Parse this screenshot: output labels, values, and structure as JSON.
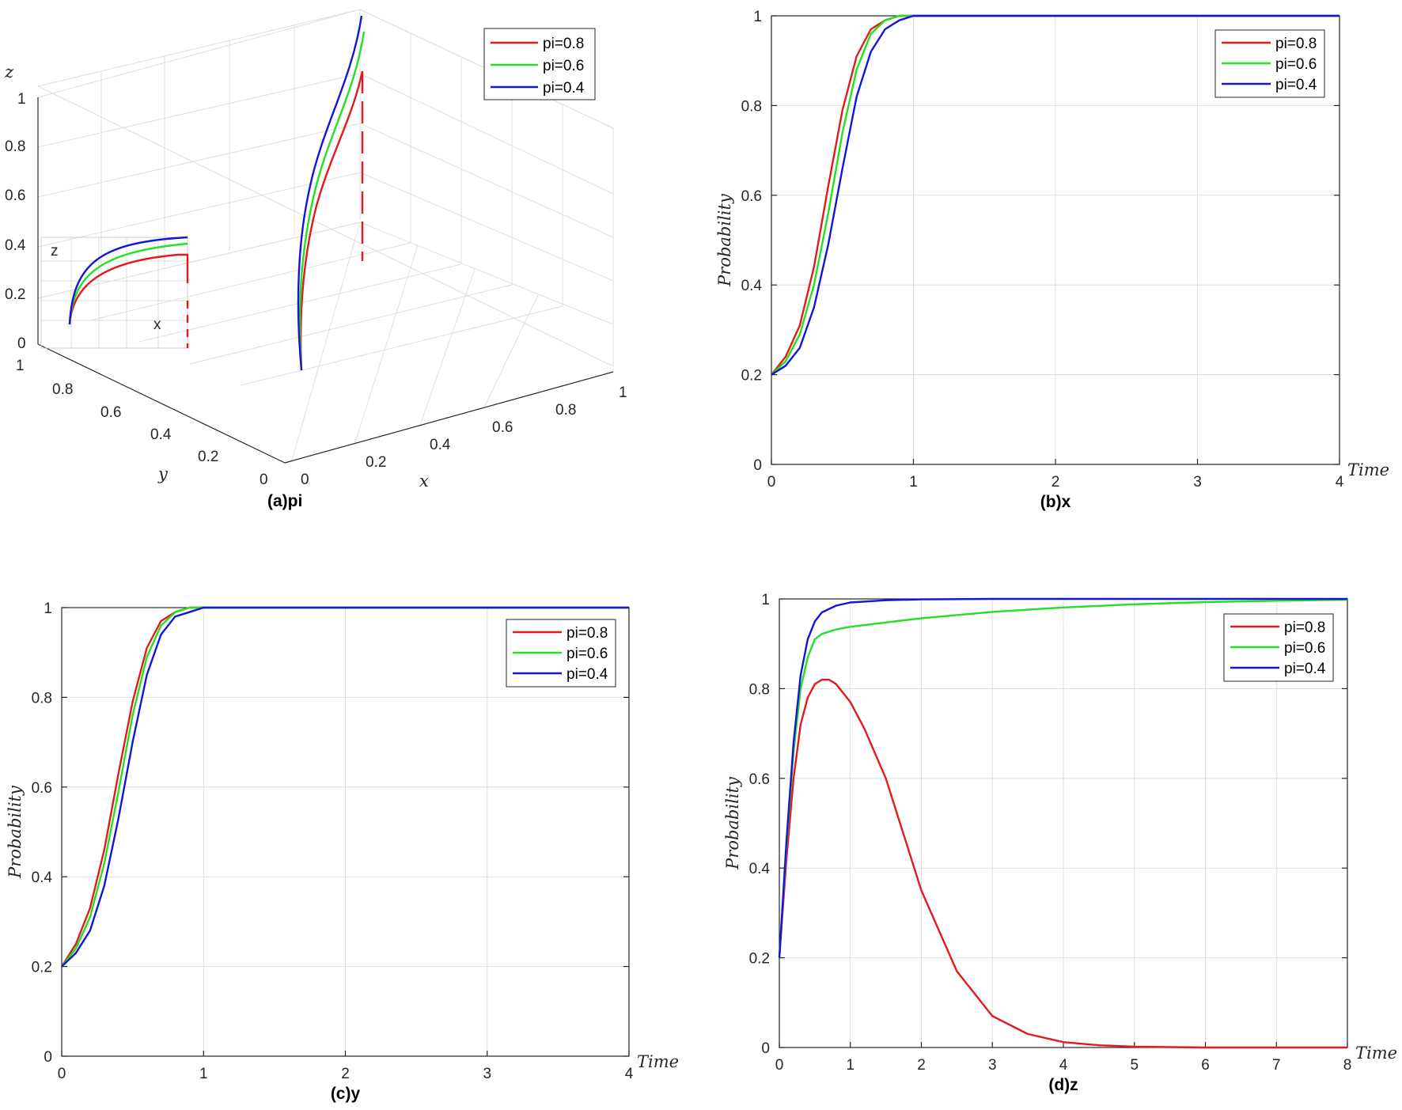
{
  "chart_data": [
    {
      "id": "a",
      "type": "line3d",
      "caption": "(a)pi",
      "xlabel": "x",
      "ylabel": "y",
      "zlabel": "z",
      "xlim": [
        0,
        1
      ],
      "ylim": [
        0,
        1
      ],
      "zlim": [
        0,
        1
      ],
      "xticks": [
        "0",
        "0.2",
        "0.4",
        "0.6",
        "0.8",
        "1"
      ],
      "yticks": [
        "0",
        "0.2",
        "0.4",
        "0.6",
        "0.8",
        "1"
      ],
      "zticks": [
        "0",
        "0.2",
        "0.4",
        "0.6",
        "0.8",
        "1"
      ],
      "inset": {
        "xlabel": "x",
        "zlabel": "z"
      },
      "legend": {
        "location": "top-right",
        "entries": [
          "pi=0.8",
          "pi=0.6",
          "pi=0.4"
        ]
      },
      "series": [
        {
          "name": "pi=0.8",
          "color": "#e31a1c"
        },
        {
          "name": "pi=0.6",
          "color": "#22e022"
        },
        {
          "name": "pi=0.4",
          "color": "#1515d8"
        }
      ]
    },
    {
      "id": "b",
      "type": "line",
      "caption": "(b)x",
      "xlabel": "Time",
      "ylabel": "Probability",
      "xlim": [
        0,
        4
      ],
      "ylim": [
        0,
        1
      ],
      "xticks": [
        "0",
        "1",
        "2",
        "3",
        "4"
      ],
      "yticks": [
        "0",
        "0.2",
        "0.4",
        "0.6",
        "0.8",
        "1"
      ],
      "legend": {
        "location": "top-right",
        "entries": [
          "pi=0.8",
          "pi=0.6",
          "pi=0.4"
        ]
      },
      "series": [
        {
          "name": "pi=0.8",
          "color": "#e31a1c",
          "x": [
            0,
            0.1,
            0.2,
            0.3,
            0.4,
            0.5,
            0.6,
            0.7,
            0.8,
            0.9,
            1.0,
            1.5,
            2,
            3,
            4
          ],
          "y": [
            0.2,
            0.24,
            0.31,
            0.44,
            0.62,
            0.79,
            0.91,
            0.97,
            0.99,
            1.0,
            1.0,
            1.0,
            1.0,
            1.0,
            1.0
          ]
        },
        {
          "name": "pi=0.6",
          "color": "#22e022",
          "x": [
            0,
            0.1,
            0.2,
            0.3,
            0.4,
            0.5,
            0.6,
            0.7,
            0.8,
            0.9,
            1.0,
            1.5,
            2,
            3,
            4
          ],
          "y": [
            0.2,
            0.23,
            0.29,
            0.4,
            0.56,
            0.74,
            0.88,
            0.96,
            0.99,
            1.0,
            1.0,
            1.0,
            1.0,
            1.0,
            1.0
          ]
        },
        {
          "name": "pi=0.4",
          "color": "#1515d8",
          "x": [
            0,
            0.1,
            0.2,
            0.3,
            0.4,
            0.5,
            0.6,
            0.7,
            0.8,
            0.9,
            1.0,
            1.5,
            2,
            3,
            4
          ],
          "y": [
            0.2,
            0.22,
            0.26,
            0.35,
            0.49,
            0.66,
            0.82,
            0.92,
            0.97,
            0.99,
            1.0,
            1.0,
            1.0,
            1.0,
            1.0
          ]
        }
      ]
    },
    {
      "id": "c",
      "type": "line",
      "caption": "(c)y",
      "xlabel": "Time",
      "ylabel": "Probability",
      "xlim": [
        0,
        4
      ],
      "ylim": [
        0,
        1
      ],
      "xticks": [
        "0",
        "1",
        "2",
        "3",
        "4"
      ],
      "yticks": [
        "0",
        "0.2",
        "0.4",
        "0.6",
        "0.8",
        "1"
      ],
      "legend": {
        "location": "top-right",
        "entries": [
          "pi=0.8",
          "pi=0.6",
          "pi=0.4"
        ]
      },
      "series": [
        {
          "name": "pi=0.8",
          "color": "#e31a1c",
          "x": [
            0,
            0.1,
            0.2,
            0.3,
            0.4,
            0.5,
            0.6,
            0.7,
            0.8,
            0.9,
            1.0,
            1.5,
            2,
            3,
            4
          ],
          "y": [
            0.2,
            0.25,
            0.33,
            0.46,
            0.63,
            0.79,
            0.91,
            0.97,
            0.99,
            1.0,
            1.0,
            1.0,
            1.0,
            1.0,
            1.0
          ]
        },
        {
          "name": "pi=0.6",
          "color": "#22e022",
          "x": [
            0,
            0.1,
            0.2,
            0.3,
            0.4,
            0.5,
            0.6,
            0.7,
            0.8,
            0.9,
            1.0,
            1.5,
            2,
            3,
            4
          ],
          "y": [
            0.2,
            0.24,
            0.31,
            0.43,
            0.59,
            0.76,
            0.89,
            0.96,
            0.99,
            1.0,
            1.0,
            1.0,
            1.0,
            1.0,
            1.0
          ]
        },
        {
          "name": "pi=0.4",
          "color": "#1515d8",
          "x": [
            0,
            0.1,
            0.2,
            0.3,
            0.4,
            0.5,
            0.6,
            0.7,
            0.8,
            0.9,
            1.0,
            1.5,
            2,
            3,
            4
          ],
          "y": [
            0.2,
            0.23,
            0.28,
            0.38,
            0.53,
            0.7,
            0.85,
            0.94,
            0.98,
            0.99,
            1.0,
            1.0,
            1.0,
            1.0,
            1.0
          ]
        }
      ]
    },
    {
      "id": "d",
      "type": "line",
      "caption": "(d)z",
      "xlabel": "Time",
      "ylabel": "Probability",
      "xlim": [
        0,
        8
      ],
      "ylim": [
        0,
        1
      ],
      "xticks": [
        "0",
        "1",
        "2",
        "3",
        "4",
        "5",
        "6",
        "7",
        "8"
      ],
      "yticks": [
        "0",
        "0.2",
        "0.4",
        "0.6",
        "0.8",
        "1"
      ],
      "legend": {
        "location": "top-right",
        "entries": [
          "pi=0.8",
          "pi=0.6",
          "pi=0.4"
        ]
      },
      "series": [
        {
          "name": "pi=0.8",
          "color": "#e31a1c",
          "x": [
            0,
            0.1,
            0.2,
            0.3,
            0.4,
            0.5,
            0.6,
            0.7,
            0.8,
            1.0,
            1.2,
            1.5,
            2.0,
            2.5,
            3.0,
            3.5,
            4.0,
            4.5,
            5.0,
            6.0,
            7.0,
            8.0
          ],
          "y": [
            0.2,
            0.42,
            0.6,
            0.72,
            0.78,
            0.81,
            0.82,
            0.82,
            0.81,
            0.77,
            0.71,
            0.6,
            0.35,
            0.17,
            0.07,
            0.03,
            0.012,
            0.005,
            0.002,
            0.0,
            0.0,
            0.0
          ]
        },
        {
          "name": "pi=0.6",
          "color": "#22e022",
          "x": [
            0,
            0.1,
            0.2,
            0.3,
            0.4,
            0.5,
            0.6,
            0.8,
            1.0,
            2.0,
            3.0,
            4.0,
            5.0,
            6.0,
            7.0,
            8.0
          ],
          "y": [
            0.2,
            0.45,
            0.66,
            0.8,
            0.87,
            0.91,
            0.922,
            0.932,
            0.938,
            0.957,
            0.971,
            0.981,
            0.988,
            0.993,
            0.996,
            0.998
          ]
        },
        {
          "name": "pi=0.4",
          "color": "#1515d8",
          "x": [
            0,
            0.1,
            0.2,
            0.3,
            0.4,
            0.5,
            0.6,
            0.8,
            1.0,
            1.5,
            2.0,
            3.0,
            4.0,
            8.0
          ],
          "y": [
            0.2,
            0.46,
            0.68,
            0.83,
            0.91,
            0.95,
            0.97,
            0.985,
            0.992,
            0.997,
            0.999,
            1.0,
            1.0,
            1.0
          ]
        }
      ]
    }
  ]
}
